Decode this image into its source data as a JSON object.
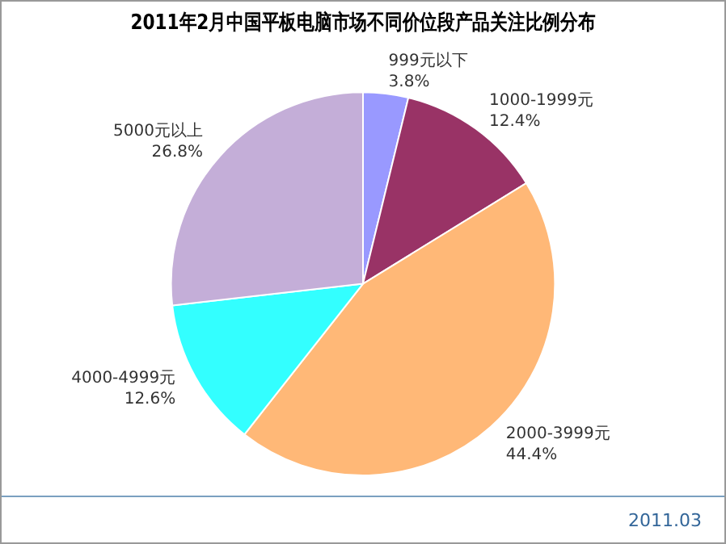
{
  "chart_data": {
    "type": "pie",
    "title": "2011年2月中国平板电脑市场不同价位段产品关注比例分布",
    "categories": [
      "999元以下",
      "1000-1999元",
      "2000-3999元",
      "4000-4999元",
      "5000元以上"
    ],
    "values": [
      3.8,
      12.4,
      44.4,
      12.6,
      26.8
    ],
    "colors": [
      "#9999ff",
      "#993366",
      "#ffb877",
      "#33ffff",
      "#c4aed8"
    ],
    "value_labels": [
      "3.8%",
      "12.4%",
      "44.4%",
      "12.6%",
      "26.8%"
    ],
    "legend": false,
    "annotations": [
      "2011.03"
    ]
  }
}
